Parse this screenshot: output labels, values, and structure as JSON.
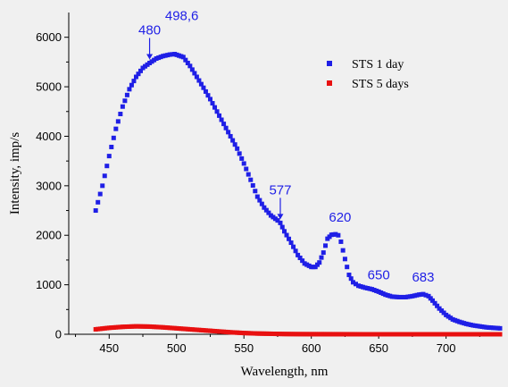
{
  "chart_data": {
    "type": "scatter",
    "xlabel": "Wavelength, nm",
    "ylabel": "Intensity, imp/s",
    "xlim": [
      420,
      740
    ],
    "ylim": [
      0,
      6500
    ],
    "x_ticks": [
      450,
      500,
      550,
      600,
      650,
      700
    ],
    "y_ticks": [
      0,
      1000,
      2000,
      3000,
      4000,
      5000,
      6000
    ],
    "grid": false,
    "legend_position": "top-right",
    "series": [
      {
        "name": "STS 1 day",
        "color": "#1f1fe6",
        "x": [
          440,
          445,
          450,
          455,
          460,
          465,
          470,
          475,
          480,
          485,
          490,
          495,
          498.6,
          505,
          510,
          515,
          520,
          525,
          530,
          535,
          540,
          545,
          550,
          555,
          560,
          565,
          570,
          575,
          577,
          580,
          585,
          590,
          595,
          600,
          603,
          606,
          609,
          612,
          615,
          618,
          620,
          622,
          625,
          628,
          631,
          635,
          640,
          645,
          650,
          655,
          660,
          665,
          670,
          675,
          680,
          683,
          687,
          690,
          695,
          700,
          705,
          710,
          715,
          720,
          725,
          730,
          735,
          740
        ],
        "y": [
          2500,
          3000,
          3600,
          4150,
          4600,
          4950,
          5200,
          5380,
          5480,
          5570,
          5620,
          5650,
          5660,
          5600,
          5420,
          5200,
          4980,
          4750,
          4500,
          4250,
          4000,
          3750,
          3450,
          3120,
          2780,
          2560,
          2400,
          2300,
          2250,
          2080,
          1850,
          1600,
          1430,
          1360,
          1360,
          1450,
          1650,
          1930,
          2010,
          2020,
          2000,
          1870,
          1520,
          1200,
          1050,
          980,
          940,
          910,
          860,
          800,
          760,
          750,
          750,
          770,
          800,
          810,
          770,
          680,
          520,
          390,
          300,
          250,
          210,
          180,
          160,
          140,
          130,
          120
        ]
      },
      {
        "name": "STS 5 days",
        "color": "#e81010",
        "x": [
          440,
          450,
          460,
          470,
          480,
          490,
          500,
          510,
          520,
          530,
          540,
          550,
          560,
          570,
          580,
          590,
          600,
          620,
          640,
          660,
          680,
          700,
          720,
          740
        ],
        "y": [
          100,
          130,
          150,
          160,
          155,
          140,
          120,
          100,
          80,
          60,
          40,
          25,
          15,
          10,
          5,
          3,
          2,
          1,
          0,
          0,
          0,
          0,
          0,
          0
        ]
      }
    ],
    "annotations": [
      {
        "text": "480",
        "x": 480,
        "y": 5480,
        "arrow": true
      },
      {
        "text": "498,6",
        "x": 498.6,
        "y": 5660,
        "arrow": false
      },
      {
        "text": "577",
        "x": 577,
        "y": 2250,
        "arrow": true
      },
      {
        "text": "620",
        "x": 620,
        "y": 2020,
        "arrow": false
      },
      {
        "text": "650",
        "x": 650,
        "y": 860,
        "arrow": false
      },
      {
        "text": "683",
        "x": 683,
        "y": 810,
        "arrow": false
      }
    ]
  }
}
